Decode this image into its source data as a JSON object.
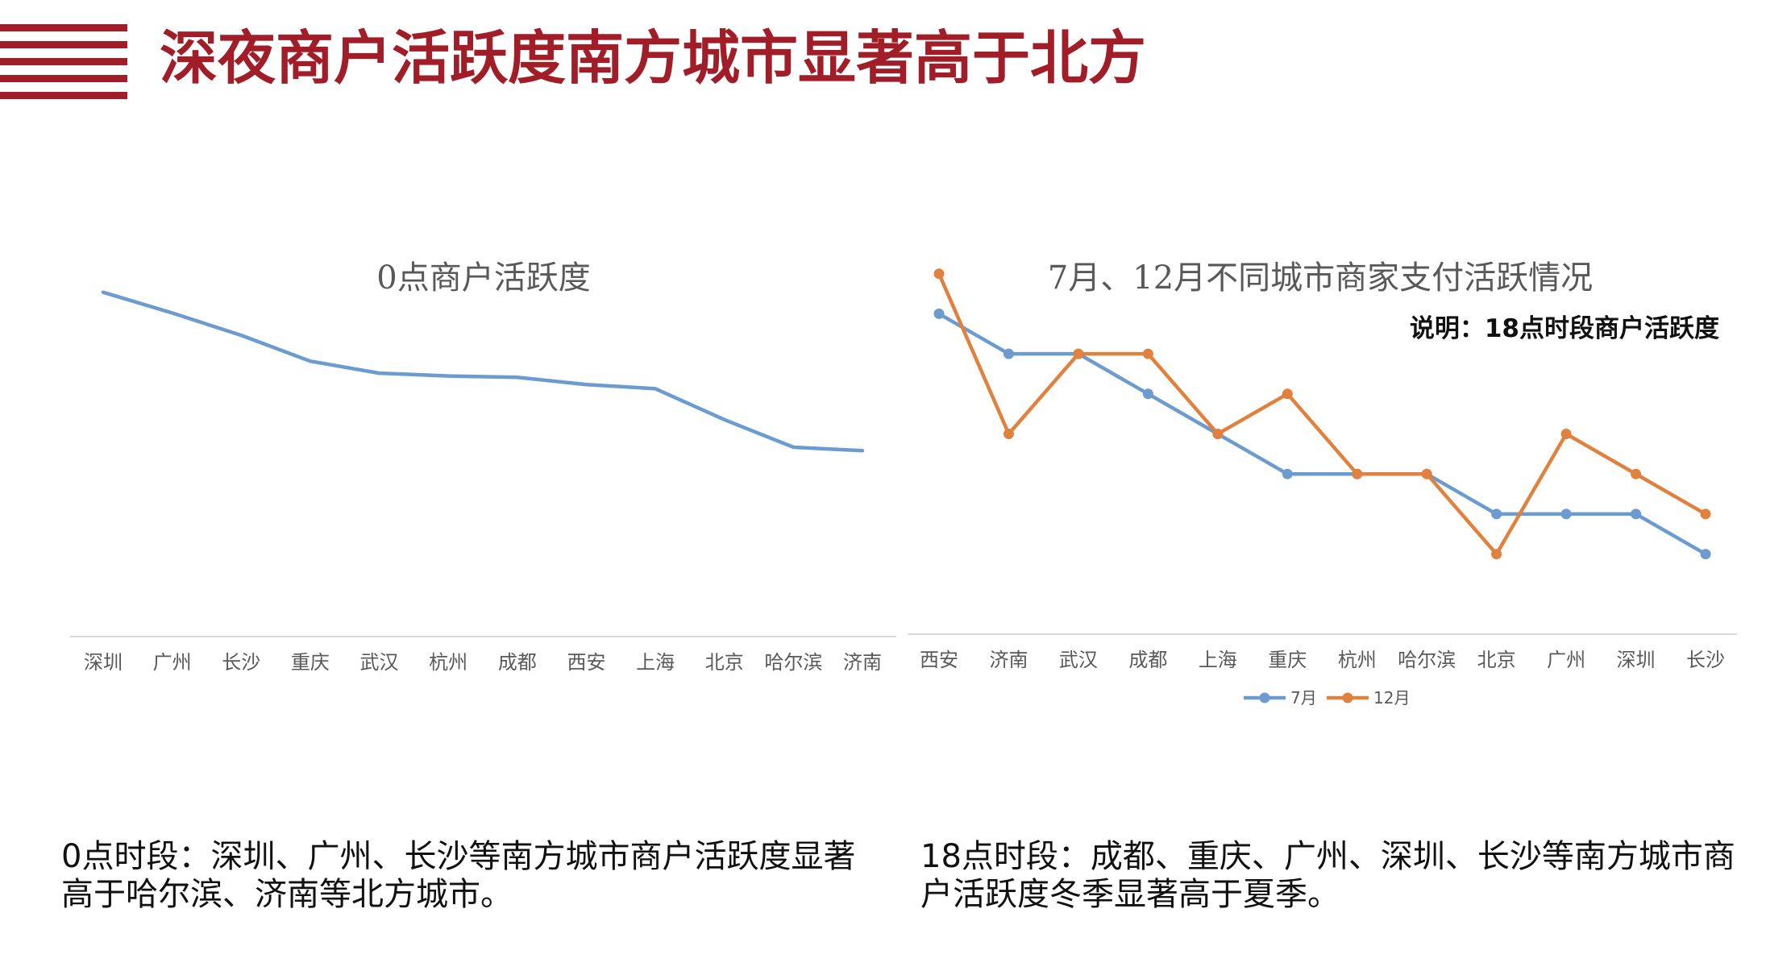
{
  "page": {
    "title": "深夜商户活跃度南方城市显著高于北方"
  },
  "colors": {
    "title_red": "#a11d28",
    "series_blue": "#6c9bcf",
    "series_orange": "#e0823d",
    "axis": "#d9d9d9",
    "label_gray": "#595959"
  },
  "captions": {
    "left": "0点时段：深圳、广州、长沙等南方城市商户活跃度显著高于哈尔滨、济南等北方城市。",
    "right": "18点时段：成都、重庆、广州、深圳、长沙等南方城市商户活跃度冬季显著高于夏季。"
  },
  "chart_data": [
    {
      "type": "line",
      "title": "0点商户活跃度",
      "categories": [
        "深圳",
        "广州",
        "长沙",
        "重庆",
        "武汉",
        "杭州",
        "成都",
        "西安",
        "上海",
        "北京",
        "哈尔滨",
        "济南"
      ],
      "series": [
        {
          "values": [
            100,
            94,
            87.5,
            80,
            76.5,
            75.7,
            75.3,
            73.2,
            72,
            63,
            55,
            54
          ],
          "color": "#6c9bcf"
        }
      ],
      "ylim": [
        0,
        110
      ],
      "grid": false,
      "legend": "none"
    },
    {
      "type": "line",
      "title": "7月、12月不同城市商家支付活跃情况",
      "subtitle": "说明：18点时段商户活跃度",
      "categories": [
        "西安",
        "济南",
        "武汉",
        "成都",
        "上海",
        "重庆",
        "杭州",
        "哈尔滨",
        "北京",
        "广州",
        "深圳",
        "长沙"
      ],
      "series": [
        {
          "name": "7月",
          "values": [
            8,
            7,
            7,
            6,
            5,
            4,
            4,
            4,
            3,
            3,
            3,
            2
          ],
          "color": "#6c9bcf"
        },
        {
          "name": "12月",
          "values": [
            9,
            5,
            7,
            7,
            5,
            6,
            4,
            4,
            2,
            5,
            4,
            3
          ],
          "color": "#e0823d"
        }
      ],
      "ylim": [
        0,
        10
      ],
      "grid": false,
      "legend": "bottom"
    }
  ]
}
